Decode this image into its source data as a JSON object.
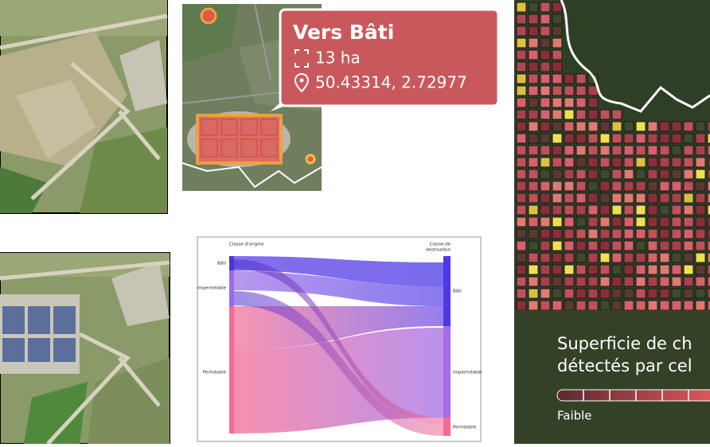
{
  "tooltip": {
    "title": "Vers Bâti",
    "area": "13 ha",
    "coords": "50.43314, 2.72977"
  },
  "sankey": {
    "source_header": "Classe d'origine",
    "target_header": [
      "Classe de",
      "destination"
    ],
    "sources": [
      "Bâti",
      "Imperméable",
      "Perméable"
    ],
    "targets": [
      "Bâti",
      "Imperméable",
      "Perméable"
    ]
  },
  "legend": {
    "title_line1": "Superficie de ch",
    "title_line2": "détectés par cel",
    "low_label": "Faible"
  }
}
